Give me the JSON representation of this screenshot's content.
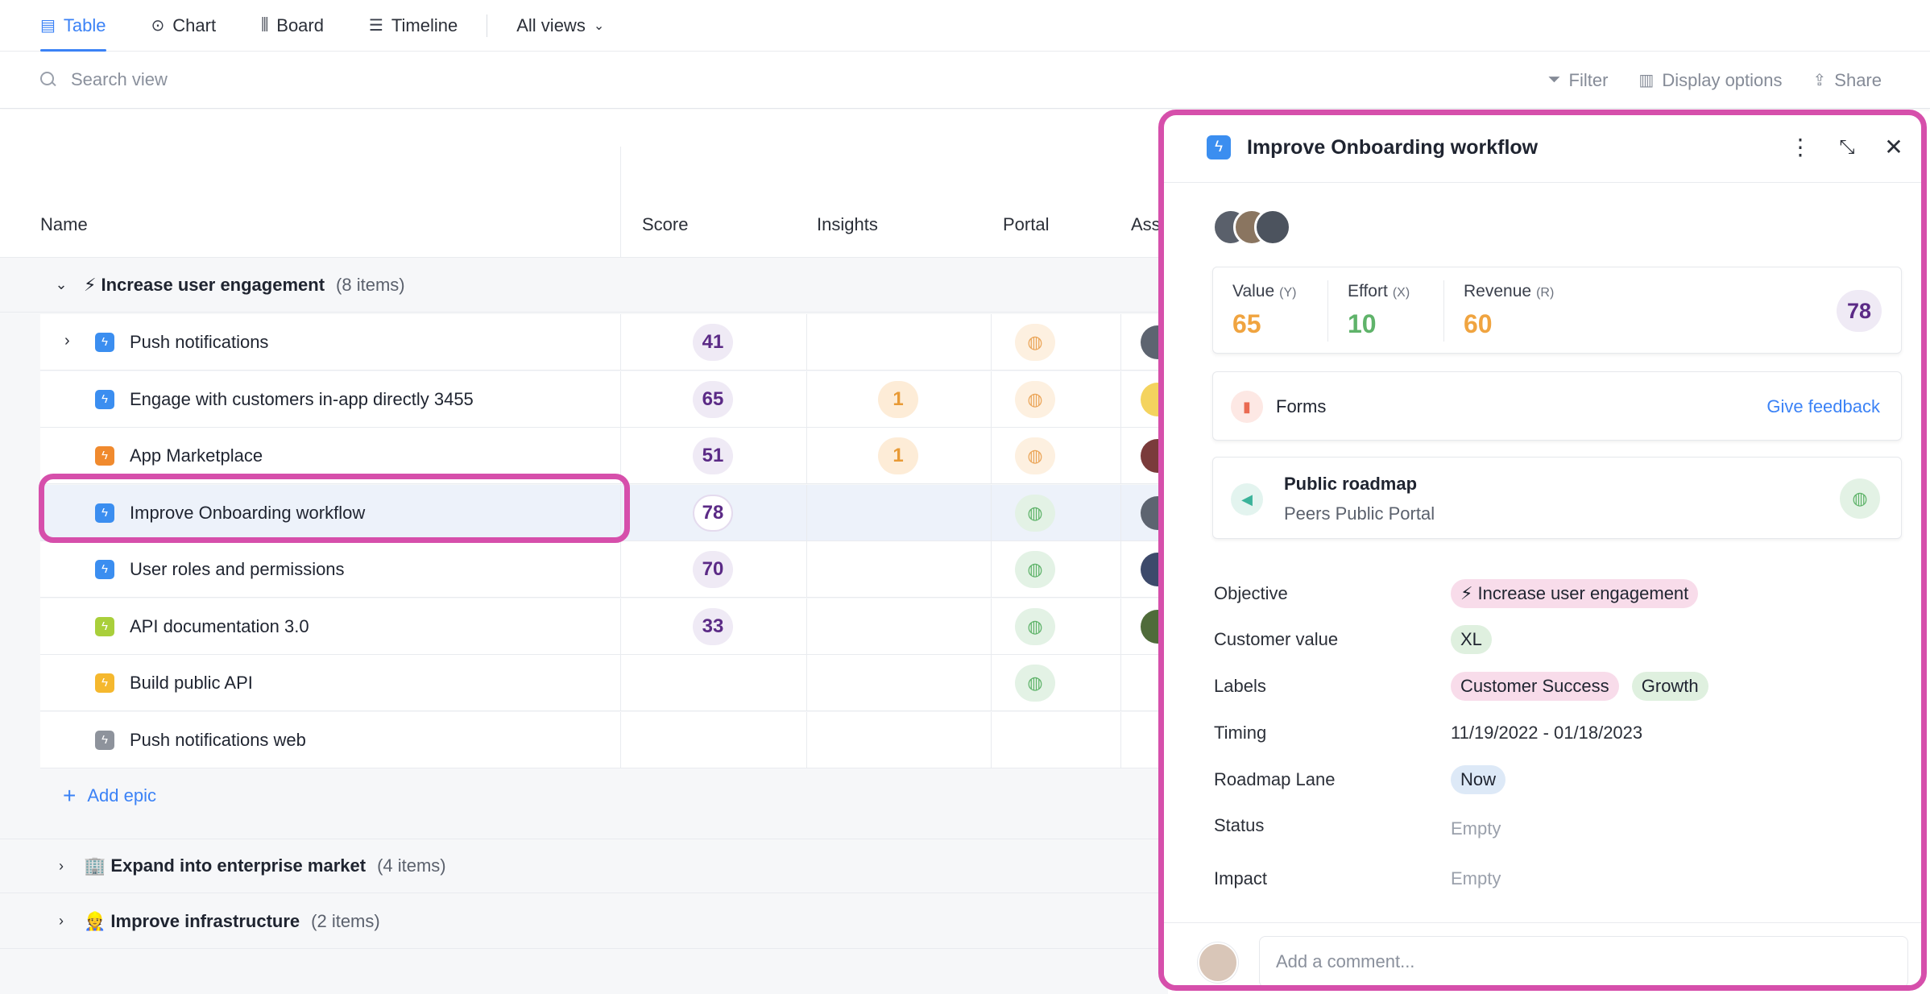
{
  "tabs": [
    {
      "label": "Table",
      "icon": "table-icon",
      "active": true
    },
    {
      "label": "Chart",
      "icon": "chart-icon"
    },
    {
      "label": "Board",
      "icon": "board-icon"
    },
    {
      "label": "Timeline",
      "icon": "timeline-icon"
    }
  ],
  "views_dropdown": "All views",
  "search": {
    "placeholder": "Search view"
  },
  "toolbar": {
    "filter": "Filter",
    "display_options": "Display options",
    "share": "Share"
  },
  "columns": {
    "name": "Name",
    "score": "Score",
    "insights": "Insights",
    "portal": "Portal",
    "assignee": "Ass"
  },
  "groups": [
    {
      "emoji": "⚡",
      "name": "Increase user engagement",
      "count": "(8 items)",
      "expanded": true
    },
    {
      "emoji": "🏢",
      "name": "Expand into enterprise market",
      "count": "(4 items)",
      "expanded": false
    },
    {
      "emoji": "👷",
      "name": "Improve infrastructure",
      "count": "(2 items)",
      "expanded": false
    }
  ],
  "rows": [
    {
      "name": "Push notifications",
      "score": "41",
      "insights": "",
      "portal": "orange",
      "icon_color": "#3b8ef0",
      "has_children": true
    },
    {
      "name": "Engage with customers in-app directly 3455",
      "score": "65",
      "insights": "1",
      "portal": "orange",
      "icon_color": "#3b8ef0"
    },
    {
      "name": "App Marketplace",
      "score": "51",
      "insights": "1",
      "portal": "orange",
      "icon_color": "#f08a2e"
    },
    {
      "name": "Improve Onboarding workflow",
      "score": "78",
      "insights": "",
      "portal": "green",
      "icon_color": "#3b8ef0",
      "selected": true
    },
    {
      "name": "User roles and permissions",
      "score": "70",
      "insights": "",
      "portal": "green",
      "icon_color": "#3b8ef0"
    },
    {
      "name": "API documentation 3.0",
      "score": "33",
      "insights": "",
      "portal": "green",
      "icon_color": "#a9cf3b"
    },
    {
      "name": "Build public API",
      "score": "",
      "insights": "",
      "portal": "green",
      "icon_color": "#f5b82e"
    },
    {
      "name": "Push notifications web",
      "score": "",
      "insights": "",
      "portal": "",
      "icon_color": "#8e939c"
    }
  ],
  "add_epic": "Add epic",
  "panel": {
    "title": "Improve Onboarding workflow",
    "metrics": [
      {
        "label": "Value",
        "key": "(Y)",
        "value": "65",
        "color": "#f0a440"
      },
      {
        "label": "Effort",
        "key": "(X)",
        "value": "10",
        "color": "#5fb36a"
      },
      {
        "label": "Revenue",
        "key": "(R)",
        "value": "60",
        "color": "#f0a440"
      }
    ],
    "score": "78",
    "forms": {
      "label": "Forms",
      "link": "Give feedback"
    },
    "roadmap": {
      "title": "Public roadmap",
      "subtitle": "Peers Public Portal"
    },
    "properties": {
      "objective_label": "Objective",
      "objective_value": "⚡ Increase user engagement",
      "customer_value_label": "Customer value",
      "customer_value": "XL",
      "labels_label": "Labels",
      "labels": [
        "Customer Success",
        "Growth"
      ],
      "timing_label": "Timing",
      "timing_value": "11/19/2022 - 01/18/2023",
      "roadmap_lane_label": "Roadmap Lane",
      "roadmap_lane_value": "Now",
      "status_label": "Status",
      "status_value": "Empty",
      "impact_label": "Impact",
      "impact_value": "Empty"
    },
    "comment_placeholder": "Add a comment..."
  }
}
